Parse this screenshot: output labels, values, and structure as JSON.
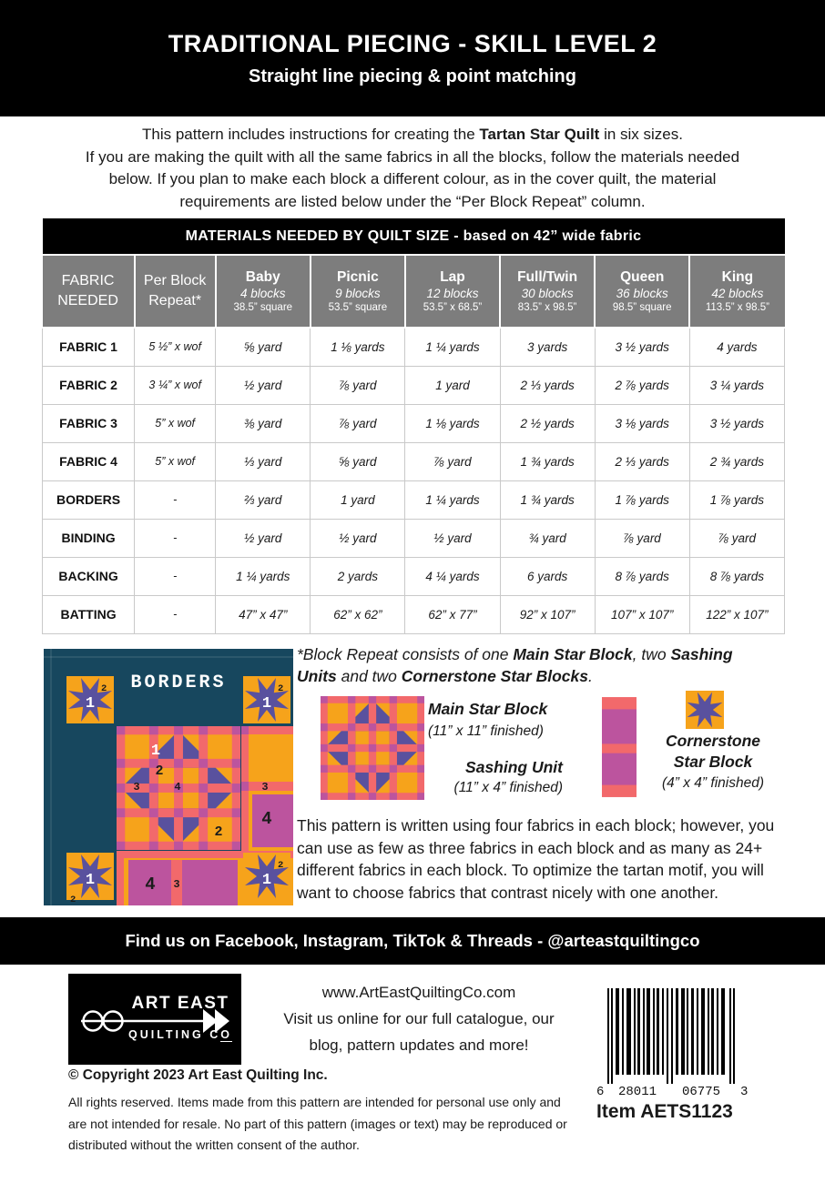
{
  "header": {
    "title": "TRADITIONAL PIECING - SKILL LEVEL 2",
    "subtitle": "Straight line piecing & point matching"
  },
  "intro": {
    "segments": [
      {
        "t": "This pattern includes instructions for creating the "
      },
      {
        "t": "Tartan Star Quilt",
        "b": true
      },
      {
        "t": " in six sizes.\nIf you are making the quilt with all the same fabrics in all the blocks, follow the materials needed\nbelow. If you plan to make each block a different colour, as in the cover quilt, the material\nrequirements are listed below under the “Per Block Repeat” column."
      }
    ]
  },
  "materials_table": {
    "title": "MATERIALS NEEDED BY QUILT SIZE - based on 42” wide fabric",
    "col1_header": "FABRIC NEEDED",
    "col2_header": "Per Block Repeat*",
    "size_columns": [
      {
        "name": "Baby",
        "blocks": "4 blocks",
        "dims": "38.5” square"
      },
      {
        "name": "Picnic",
        "blocks": "9 blocks",
        "dims": "53.5” square"
      },
      {
        "name": "Lap",
        "blocks": "12 blocks",
        "dims": "53.5” x 68.5”"
      },
      {
        "name": "Full/Twin",
        "blocks": "30 blocks",
        "dims": "83.5” x 98.5”"
      },
      {
        "name": "Queen",
        "blocks": "36 blocks",
        "dims": "98.5” square"
      },
      {
        "name": "King",
        "blocks": "42 blocks",
        "dims": "113.5” x 98.5”"
      }
    ],
    "rows": [
      {
        "label": "FABRIC 1",
        "per_block": "5 ½” x wof",
        "values": [
          "⅝ yard",
          "1 ⅛ yards",
          "1 ¼ yards",
          "3 yards",
          "3 ½ yards",
          "4 yards"
        ]
      },
      {
        "label": "FABRIC 2",
        "per_block": "3 ¼” x wof",
        "values": [
          "½ yard",
          "⅞ yard",
          "1 yard",
          "2 ⅓ yards",
          "2 ⅞ yards",
          "3 ¼ yards"
        ]
      },
      {
        "label": "FABRIC 3",
        "per_block": "5” x wof",
        "values": [
          "⅜ yard",
          "⅞ yard",
          "1 ⅛ yards",
          "2 ½ yards",
          "3 ⅛ yards",
          "3 ½ yards"
        ]
      },
      {
        "label": "FABRIC 4",
        "per_block": "5” x wof",
        "values": [
          "⅓ yard",
          "⅝ yard",
          "⅞ yard",
          "1 ¾ yards",
          "2 ⅓ yards",
          "2 ¾ yards"
        ]
      },
      {
        "label": "BORDERS",
        "per_block": "-",
        "values": [
          "⅔ yard",
          "1 yard",
          "1 ¼ yards",
          "1 ¾ yards",
          "1 ⅞ yards",
          "1 ⅞ yards"
        ]
      },
      {
        "label": "BINDING",
        "per_block": "-",
        "values": [
          "½ yard",
          "½ yard",
          "½ yard",
          "¾ yard",
          "⅞ yard",
          "⅞ yard"
        ]
      },
      {
        "label": "BACKING",
        "per_block": "-",
        "values": [
          "1 ¼ yards",
          "2 yards",
          "4 ¼ yards",
          "6 yards",
          "8 ⅞ yards",
          "8 ⅞ yards"
        ]
      },
      {
        "label": "BATTING",
        "per_block": "-",
        "values": [
          "47” x 47”",
          "62” x 62”",
          "62” x 77”",
          "92” x 107”",
          "107” x 107”",
          "122” x 107”"
        ]
      }
    ]
  },
  "quilt_diagram": {
    "borders_label": "BORDERS",
    "fabric_1": "1",
    "fabric_2": "2",
    "fabric_3": "3",
    "fabric_4": "4"
  },
  "block_repeat": {
    "note_segments": [
      {
        "t": "*Block Repeat consists of one ",
        "i": true
      },
      {
        "t": "Main Star Block",
        "b": true,
        "i": true
      },
      {
        "t": ", two ",
        "i": true
      },
      {
        "t": "Sashing\nUnits",
        "b": true,
        "i": true
      },
      {
        "t": " and two ",
        "i": true
      },
      {
        "t": "Cornerstone Star Blocks",
        "b": true,
        "i": true
      },
      {
        "t": ".",
        "i": true
      }
    ],
    "main_star": {
      "label": "Main Star Block",
      "size": "(11” x 11” finished)"
    },
    "sashing": {
      "label": "Sashing Unit",
      "size": "(11” x 4” finished)"
    },
    "cornerstone": {
      "label_line1": "Cornerstone",
      "label_line2": "Star Block",
      "size": "(4” x 4” finished)"
    }
  },
  "fabrics_paragraph": "This pattern is written using four fabrics in each block; however, you\ncan use as few as three fabrics in each block and as many as 24+\ndifferent fabrics in each block. To optimize the tartan motif, you will\nwant to choose fabrics that contrast nicely with one another.",
  "social_bar": {
    "text": "Find us on Facebook, Instagram, TikTok & Threads - @arteastquiltingco"
  },
  "footer": {
    "logo": {
      "line1": "ART EAST",
      "line2": "QUILTING C",
      "line2_o": "O"
    },
    "website": "www.ArtEastQuiltingCo.com",
    "tagline": "Visit us online for our full catalogue, our\nblog, pattern updates and more!",
    "copyright": "© Copyright 2023 Art East Quilting Inc.",
    "legal": "All rights reserved. Items made from this pattern are intended for personal use only and\nare not intended for resale. No part of this pattern (images or text) may be reproduced or\ndistributed without the written consent of the author.",
    "barcode": {
      "first": "6",
      "mid1": "28011",
      "mid2": "06775",
      "last": "3"
    },
    "item": "Item AETS1123"
  },
  "colors": {
    "teal": "#17475E",
    "orange": "#F6A31B",
    "salmon": "#F2696B",
    "magenta": "#BC549E",
    "purple": "#59519E",
    "header_gray": "#7D7D7D",
    "black": "#000000"
  }
}
